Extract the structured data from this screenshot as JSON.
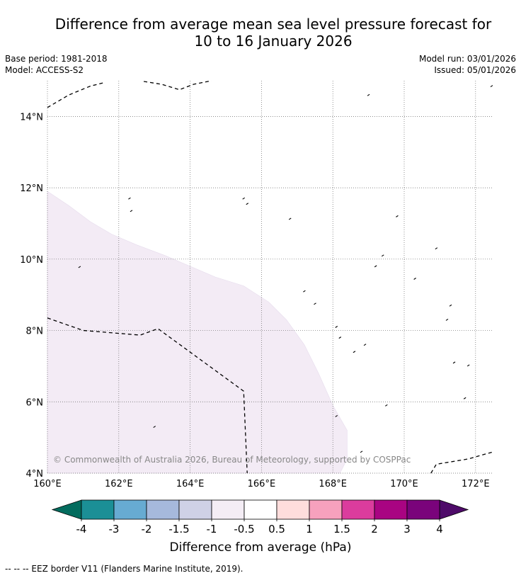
{
  "title": {
    "line1": "Difference from average mean sea level pressure forecast for",
    "line2": "10 to 16 January 2026"
  },
  "meta": {
    "base_period": "Base period: 1981-2018",
    "model": "Model: ACCESS-S2",
    "model_run": "Model run: 03/01/2026",
    "issued": "Issued: 05/01/2026"
  },
  "map": {
    "lon_range": [
      160,
      172.5
    ],
    "lat_range": [
      4,
      15
    ],
    "lon_ticks": [
      {
        "value": 160,
        "label": "160°E"
      },
      {
        "value": 162,
        "label": "162°E"
      },
      {
        "value": 164,
        "label": "164°E"
      },
      {
        "value": 166,
        "label": "166°E"
      },
      {
        "value": 168,
        "label": "168°E"
      },
      {
        "value": 170,
        "label": "170°E"
      },
      {
        "value": 172,
        "label": "172°E"
      }
    ],
    "lat_ticks": [
      {
        "value": 4,
        "label": "4°N"
      },
      {
        "value": 6,
        "label": "6°N"
      },
      {
        "value": 8,
        "label": "8°N"
      },
      {
        "value": 10,
        "label": "10°N"
      },
      {
        "value": 12,
        "label": "12°N"
      },
      {
        "value": 14,
        "label": "14°N"
      }
    ],
    "anomaly_region": {
      "band": "-1 to -0.5",
      "color": "#f3ebf5",
      "outline": [
        [
          160,
          11.9
        ],
        [
          160.6,
          11.5
        ],
        [
          161.2,
          11.05
        ],
        [
          161.8,
          10.7
        ],
        [
          162.5,
          10.4
        ],
        [
          163.3,
          10.1
        ],
        [
          164,
          9.8
        ],
        [
          164.7,
          9.5
        ],
        [
          165.5,
          9.25
        ],
        [
          166.2,
          8.8
        ],
        [
          166.7,
          8.3
        ],
        [
          167.2,
          7.6
        ],
        [
          167.6,
          6.8
        ],
        [
          168,
          5.9
        ],
        [
          168.4,
          5.2
        ],
        [
          168.4,
          4.4
        ],
        [
          168.2,
          4
        ],
        [
          160,
          4
        ]
      ]
    },
    "eez_lines": [
      [
        [
          160,
          14.25
        ],
        [
          160.6,
          14.6
        ],
        [
          161.2,
          14.85
        ],
        [
          161.6,
          14.95
        ]
      ],
      [
        [
          162.7,
          14.98
        ],
        [
          163.2,
          14.9
        ],
        [
          163.7,
          14.75
        ],
        [
          164.1,
          14.9
        ],
        [
          164.6,
          15
        ]
      ],
      [
        [
          160,
          8.35
        ],
        [
          161,
          8
        ],
        [
          162.6,
          7.87
        ],
        [
          163.1,
          8.05
        ],
        [
          165.5,
          6.3
        ],
        [
          165.6,
          4
        ]
      ],
      [
        [
          170.75,
          4
        ],
        [
          170.9,
          4.25
        ],
        [
          171.8,
          4.4
        ],
        [
          172.5,
          4.6
        ]
      ]
    ],
    "islands": [
      [
        160.9,
        9.78
      ],
      [
        162.3,
        11.7
      ],
      [
        162.35,
        11.35
      ],
      [
        163.0,
        5.3
      ],
      [
        165.5,
        11.7
      ],
      [
        165.6,
        11.55
      ],
      [
        166.8,
        11.13
      ],
      [
        168.1,
        8.1
      ],
      [
        168.2,
        7.8
      ],
      [
        168.6,
        7.4
      ],
      [
        169.2,
        9.8
      ],
      [
        169.4,
        10.1
      ],
      [
        169.8,
        11.2
      ],
      [
        170.3,
        9.45
      ],
      [
        170.9,
        10.3
      ],
      [
        171.2,
        8.3
      ],
      [
        171.3,
        8.7
      ],
      [
        168.9,
        7.6
      ],
      [
        171.4,
        7.1
      ],
      [
        171.8,
        7.02
      ],
      [
        171.7,
        6.1
      ],
      [
        169.5,
        5.9
      ],
      [
        168.1,
        5.6
      ],
      [
        168.8,
        4.6
      ],
      [
        169.0,
        14.6
      ],
      [
        172.45,
        14.85
      ],
      [
        167.2,
        9.1
      ],
      [
        167.5,
        8.75
      ]
    ],
    "copyright": "© Commonwealth of Australia 2026, Bureau of Meteorology, supported by COSPPac"
  },
  "colorbar": {
    "label": "Difference from average (hPa)",
    "ticks": [
      "-4",
      "-3",
      "-2",
      "-1.5",
      "-1",
      "-0.5",
      "0.5",
      "1",
      "1.5",
      "2",
      "3",
      "4"
    ],
    "under_color": "#036c5e",
    "over_color": "#4e0b69",
    "colors": [
      "#1b8f96",
      "#67abd2",
      "#a6b9dc",
      "#cfd1e6",
      "#f4edf5",
      "#ffffff",
      "#ffdddc",
      "#f7a1bd",
      "#db3c9d",
      "#a90482",
      "#7a037b"
    ]
  },
  "footer": {
    "legend": "-- -- -- EEZ border V11 (Flanders Marine Institute, 2019)."
  }
}
